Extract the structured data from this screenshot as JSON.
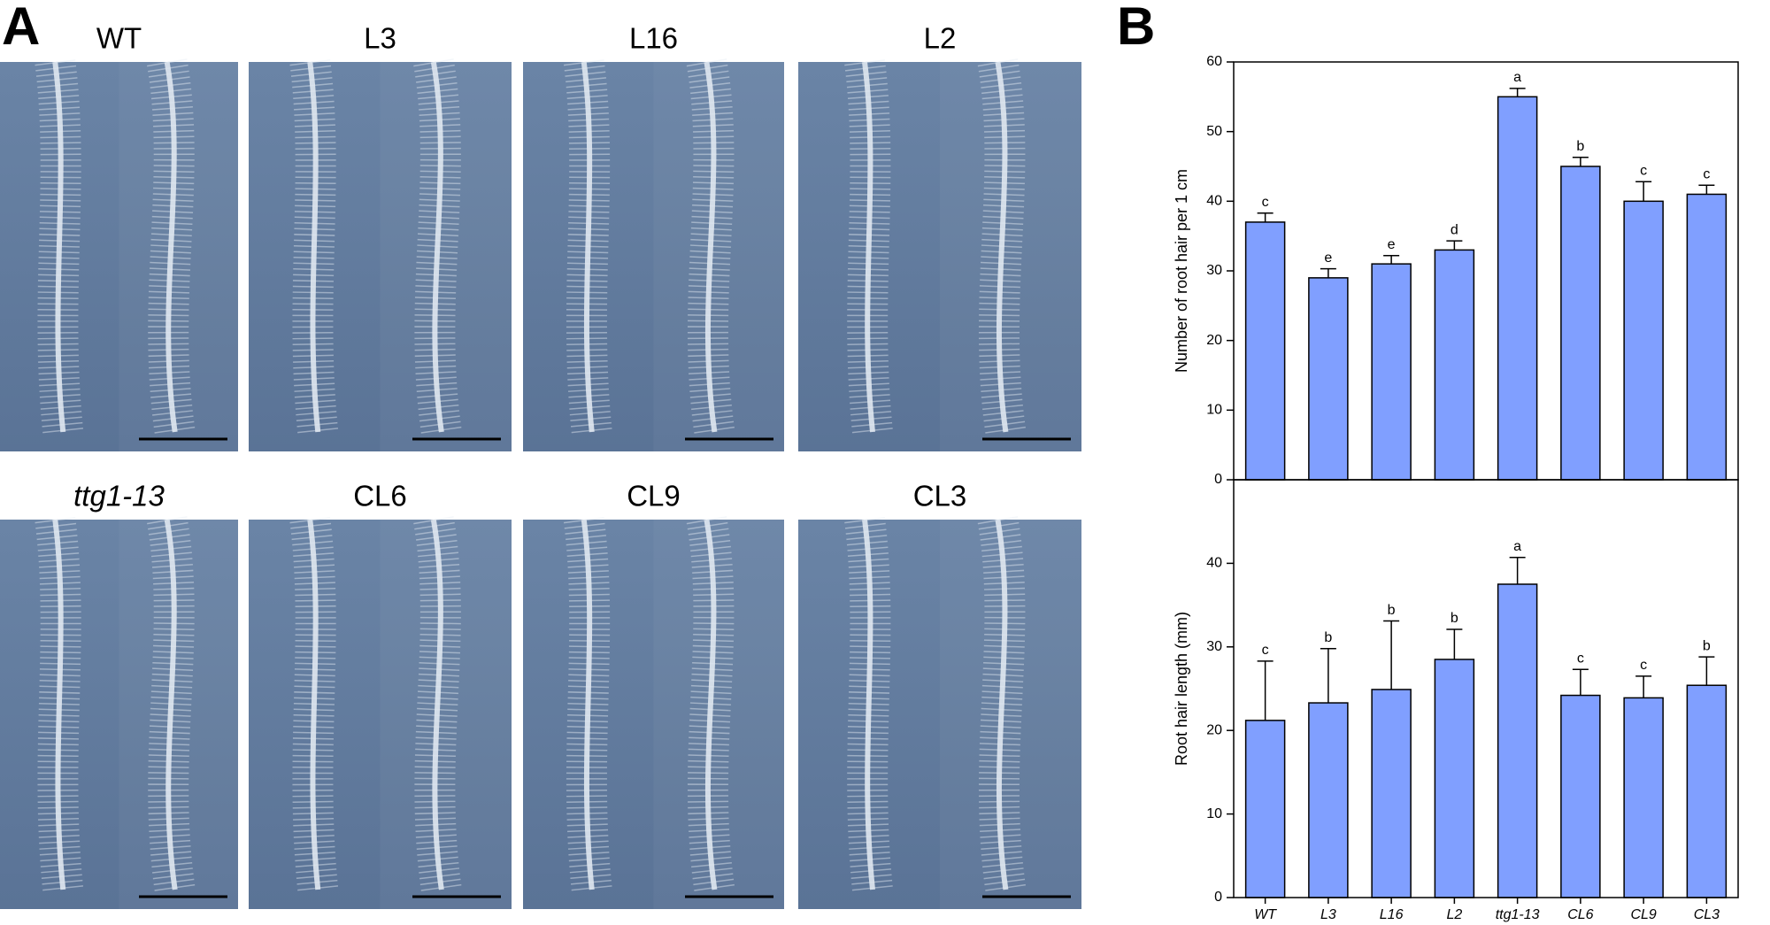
{
  "panel_a": {
    "label": "A",
    "images": [
      "WT",
      "L3",
      "L16",
      "L2",
      "ttg1-13",
      "CL6",
      "CL9",
      "CL3"
    ]
  },
  "panel_b": {
    "label": "B"
  },
  "chart_data": [
    {
      "type": "bar",
      "y_label": "Number of root hair per 1 cm",
      "values": [
        37,
        29,
        31,
        33,
        55,
        45,
        40,
        41
      ],
      "errors": [
        1.3,
        1.3,
        1.2,
        1.3,
        1.2,
        1.3,
        2.8,
        1.3
      ],
      "annotations": [
        "c",
        "e",
        "e",
        "d",
        "a",
        "b",
        "c",
        "c"
      ],
      "color": "#809fff",
      "ylim": [
        0,
        60
      ],
      "yticks": [
        0,
        10,
        20,
        30,
        40,
        50,
        60
      ]
    },
    {
      "type": "bar",
      "y_label": "Root hair length (mm)",
      "categories": [
        "WT",
        "L3",
        "L16",
        "L2",
        "ttg1-13",
        "CL6",
        "CL9",
        "CL3"
      ],
      "values": [
        21.2,
        23.3,
        24.9,
        28.5,
        37.5,
        24.2,
        23.9,
        25.4
      ],
      "errors": [
        7.1,
        6.5,
        8.2,
        3.6,
        3.2,
        3.1,
        2.6,
        3.4
      ],
      "annotations": [
        "c",
        "b",
        "b",
        "b",
        "a",
        "c",
        "c",
        "b"
      ],
      "color": "#809fff",
      "ylim": [
        0,
        50
      ],
      "yticks": [
        0,
        10,
        20,
        30,
        40
      ]
    }
  ]
}
